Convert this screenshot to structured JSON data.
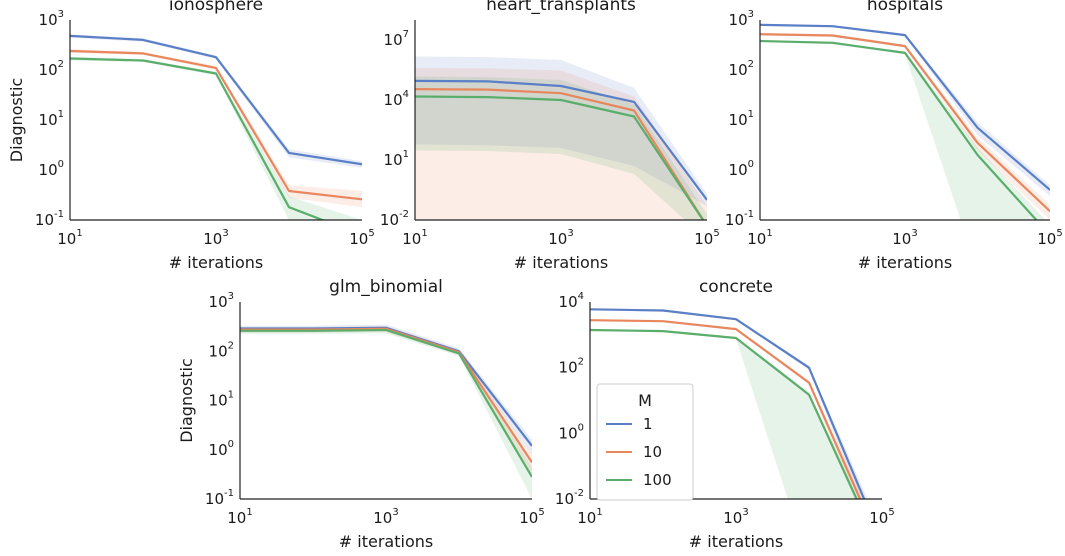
{
  "chart_data": [
    {
      "type": "line",
      "title": "ionosphere",
      "xlabel": "# iterations",
      "ylabel": "Diagnostic",
      "xscale": "log",
      "yscale": "log",
      "xlim": [
        10,
        100000
      ],
      "ylim": [
        0.1,
        1000
      ],
      "xticks": [
        {
          "base": "10",
          "exp": "1"
        },
        {
          "base": "10",
          "exp": "3"
        },
        {
          "base": "10",
          "exp": "5"
        }
      ],
      "yticks": [
        {
          "value": 0.1,
          "base": "10",
          "exp": "-1"
        },
        {
          "value": 1,
          "base": "10",
          "exp": "0"
        },
        {
          "value": 10,
          "base": "10",
          "exp": "1"
        },
        {
          "value": 100,
          "base": "10",
          "exp": "2"
        },
        {
          "value": 1000,
          "base": "10",
          "exp": "3"
        }
      ],
      "x": [
        10,
        100,
        1000,
        10000,
        100000
      ],
      "series": [
        {
          "name": "1",
          "color": "#5b7fc7",
          "values": [
            480,
            400,
            180,
            2.2,
            1.3
          ],
          "lower": [
            440,
            370,
            165,
            1.8,
            1.1
          ],
          "upper": [
            520,
            430,
            195,
            2.6,
            1.5
          ]
        },
        {
          "name": "10",
          "color": "#e8875d",
          "values": [
            240,
            215,
            110,
            0.38,
            0.26
          ],
          "lower": [
            220,
            200,
            100,
            0.28,
            0.18
          ],
          "upper": [
            260,
            230,
            120,
            0.5,
            0.38
          ]
        },
        {
          "name": "100",
          "color": "#5aae6b",
          "values": [
            170,
            155,
            85,
            0.18,
            0.05
          ],
          "lower": [
            155,
            145,
            78,
            0.1,
            0.02
          ],
          "upper": [
            185,
            165,
            92,
            0.3,
            0.1
          ]
        }
      ]
    },
    {
      "type": "line",
      "title": "heart_transplants",
      "xlabel": "# iterations",
      "ylabel": "",
      "xscale": "log",
      "yscale": "log",
      "xlim": [
        10,
        100000
      ],
      "ylim": [
        0.01,
        100000000
      ],
      "xticks": [
        {
          "base": "10",
          "exp": "1"
        },
        {
          "base": "10",
          "exp": "3"
        },
        {
          "base": "10",
          "exp": "5"
        }
      ],
      "yticks": [
        {
          "value": 0.01,
          "base": "10",
          "exp": "-2"
        },
        {
          "value": 10,
          "base": "10",
          "exp": "1"
        },
        {
          "value": 10000,
          "base": "10",
          "exp": "4"
        },
        {
          "value": 10000000,
          "base": "10",
          "exp": "7"
        }
      ],
      "x": [
        10,
        100,
        1000,
        10000,
        100000
      ],
      "series": [
        {
          "name": "1",
          "color": "#5b7fc7",
          "values": [
            90000,
            85000,
            50000,
            8000,
            0.1
          ],
          "lower": [
            60,
            55,
            40,
            5,
            0.05
          ],
          "upper": [
            1500000,
            1400000,
            1000000,
            40000,
            0.2
          ]
        },
        {
          "name": "10",
          "color": "#e8875d",
          "values": [
            35000,
            33000,
            22000,
            3000,
            0.005
          ],
          "lower": [
            0.0001,
            0.0001,
            0.0001,
            0.0001,
            0.0001
          ],
          "upper": [
            400000,
            380000,
            300000,
            15000,
            0.05
          ]
        },
        {
          "name": "100",
          "color": "#5aae6b",
          "values": [
            15000,
            14000,
            10000,
            1500,
            0.005
          ],
          "lower": [
            30,
            28,
            20,
            2,
            0.001
          ],
          "upper": [
            150000,
            140000,
            100000,
            6000,
            0.02
          ]
        }
      ]
    },
    {
      "type": "line",
      "title": "hospitals",
      "xlabel": "# iterations",
      "ylabel": "",
      "xscale": "log",
      "yscale": "log",
      "xlim": [
        10,
        100000
      ],
      "ylim": [
        0.1,
        1000
      ],
      "xticks": [
        {
          "base": "10",
          "exp": "1"
        },
        {
          "base": "10",
          "exp": "3"
        },
        {
          "base": "10",
          "exp": "5"
        }
      ],
      "yticks": [
        {
          "value": 0.1,
          "base": "10",
          "exp": "-1"
        },
        {
          "value": 1,
          "base": "10",
          "exp": "0"
        },
        {
          "value": 10,
          "base": "10",
          "exp": "1"
        },
        {
          "value": 100,
          "base": "10",
          "exp": "2"
        },
        {
          "value": 1000,
          "base": "10",
          "exp": "3"
        }
      ],
      "x": [
        10,
        100,
        1000,
        10000,
        100000
      ],
      "series": [
        {
          "name": "1",
          "color": "#5b7fc7",
          "values": [
            800,
            750,
            500,
            7,
            0.4
          ],
          "lower": [
            760,
            710,
            470,
            5,
            0.3
          ],
          "upper": [
            840,
            790,
            530,
            9,
            0.5
          ]
        },
        {
          "name": "10",
          "color": "#e8875d",
          "values": [
            520,
            490,
            300,
            3.5,
            0.15
          ],
          "lower": [
            490,
            460,
            280,
            2.5,
            0.1
          ],
          "upper": [
            550,
            520,
            320,
            4.5,
            0.2
          ]
        },
        {
          "name": "100",
          "color": "#5aae6b",
          "values": [
            380,
            350,
            220,
            2,
            0.05
          ],
          "lower": [
            360,
            330,
            205,
            0.01,
            0.01
          ],
          "upper": [
            400,
            370,
            235,
            2.8,
            0.08
          ]
        }
      ]
    },
    {
      "type": "line",
      "title": "glm_binomial",
      "xlabel": "# iterations",
      "ylabel": "Diagnostic",
      "xscale": "log",
      "yscale": "log",
      "xlim": [
        10,
        100000
      ],
      "ylim": [
        0.1,
        1000
      ],
      "xticks": [
        {
          "base": "10",
          "exp": "1"
        },
        {
          "base": "10",
          "exp": "3"
        },
        {
          "base": "10",
          "exp": "5"
        }
      ],
      "yticks": [
        {
          "value": 0.1,
          "base": "10",
          "exp": "-1"
        },
        {
          "value": 1,
          "base": "10",
          "exp": "0"
        },
        {
          "value": 10,
          "base": "10",
          "exp": "1"
        },
        {
          "value": 100,
          "base": "10",
          "exp": "2"
        },
        {
          "value": 1000,
          "base": "10",
          "exp": "3"
        }
      ],
      "x": [
        10,
        100,
        1000,
        10000,
        100000
      ],
      "series": [
        {
          "name": "1",
          "color": "#5b7fc7",
          "values": [
            290,
            290,
            300,
            100,
            1.2
          ],
          "lower": [
            250,
            250,
            260,
            90,
            0.8
          ],
          "upper": [
            330,
            330,
            350,
            115,
            1.6
          ]
        },
        {
          "name": "10",
          "color": "#e8875d",
          "values": [
            275,
            275,
            285,
            95,
            0.55
          ],
          "lower": [
            240,
            240,
            245,
            85,
            0.3
          ],
          "upper": [
            310,
            310,
            325,
            108,
            0.8
          ]
        },
        {
          "name": "100",
          "color": "#5aae6b",
          "values": [
            260,
            260,
            270,
            90,
            0.28
          ],
          "lower": [
            225,
            225,
            230,
            80,
            0.1
          ],
          "upper": [
            295,
            295,
            310,
            102,
            0.45
          ]
        }
      ]
    },
    {
      "type": "line",
      "title": "concrete",
      "xlabel": "# iterations",
      "ylabel": "",
      "xscale": "log",
      "yscale": "log",
      "xlim": [
        10,
        100000
      ],
      "ylim": [
        0.01,
        10000
      ],
      "xticks": [
        {
          "base": "10",
          "exp": "1"
        },
        {
          "base": "10",
          "exp": "3"
        },
        {
          "base": "10",
          "exp": "5"
        }
      ],
      "yticks": [
        {
          "value": 0.01,
          "base": "10",
          "exp": "-2"
        },
        {
          "value": 1,
          "base": "10",
          "exp": "0"
        },
        {
          "value": 100,
          "base": "10",
          "exp": "2"
        },
        {
          "value": 10000,
          "base": "10",
          "exp": "4"
        }
      ],
      "x": [
        10,
        100,
        1000,
        10000,
        100000
      ],
      "series": [
        {
          "name": "1",
          "color": "#5b7fc7",
          "values": [
            6000,
            5500,
            3000,
            100,
            0.0005
          ],
          "lower": [
            5600,
            5100,
            2800,
            85,
            0.0002
          ],
          "upper": [
            6400,
            5900,
            3200,
            115,
            0.001
          ]
        },
        {
          "name": "10",
          "color": "#e8875d",
          "values": [
            2800,
            2600,
            1500,
            35,
            0.0003
          ],
          "lower": [
            2600,
            2400,
            1400,
            30,
            0.0001
          ],
          "upper": [
            3000,
            2800,
            1600,
            40,
            0.0006
          ]
        },
        {
          "name": "100",
          "color": "#5aae6b",
          "values": [
            1400,
            1300,
            800,
            15,
            0.0002
          ],
          "lower": [
            1300,
            1200,
            740,
            0.0001,
            0.0001
          ],
          "upper": [
            1500,
            1400,
            860,
            18,
            0.0004
          ]
        }
      ],
      "legend": {
        "title": "M",
        "entries": [
          "1",
          "10",
          "100"
        ],
        "placement": "lower-left"
      }
    }
  ]
}
